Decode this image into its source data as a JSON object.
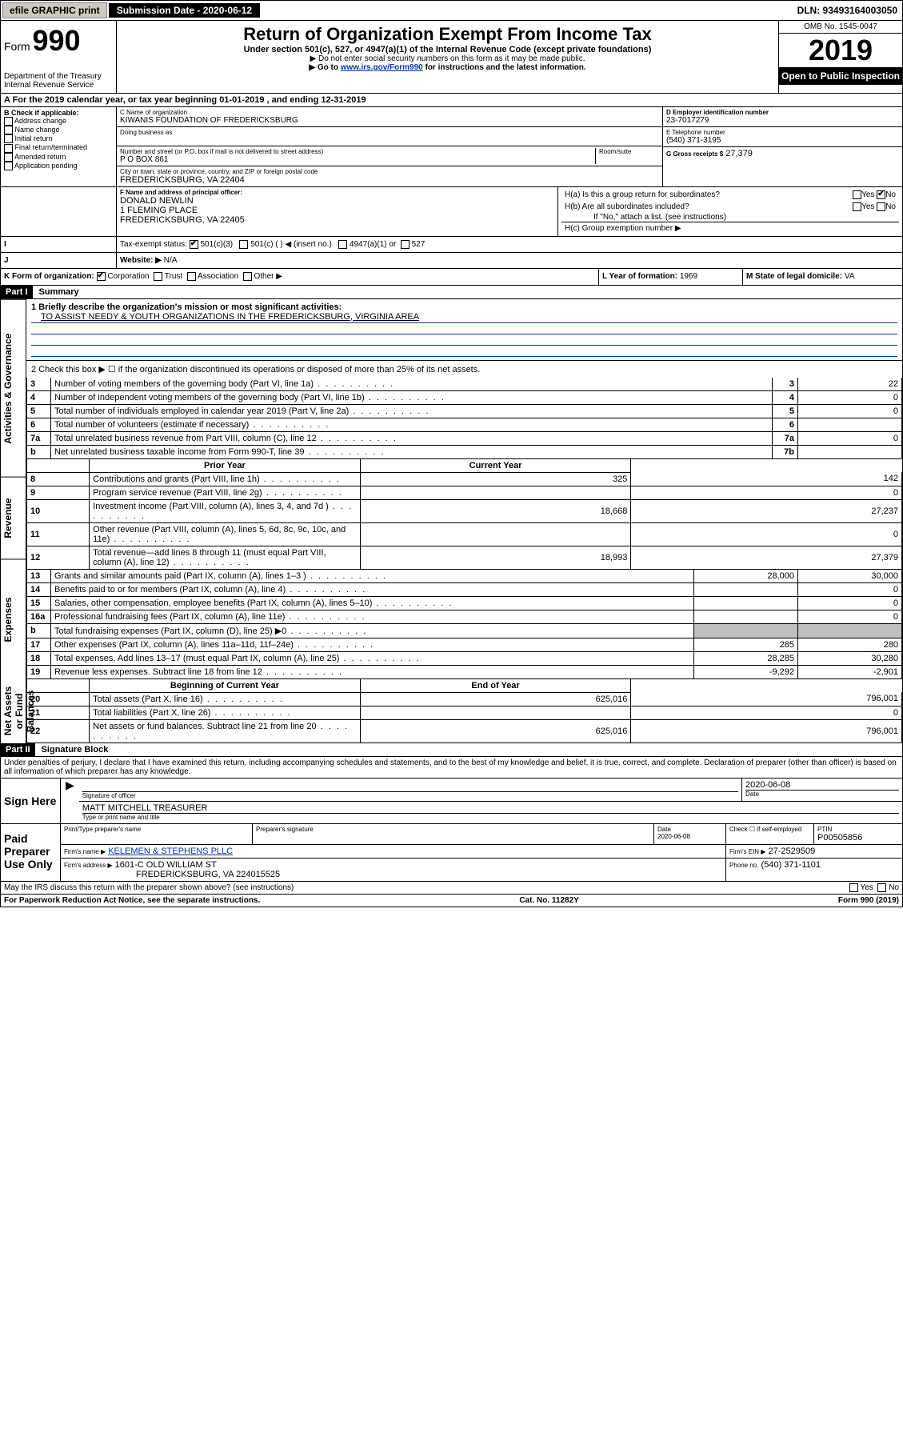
{
  "top_bar": {
    "efile": "efile GRAPHIC print",
    "submission_label": "Submission Date - 2020-06-12",
    "dln": "DLN: 93493164003050"
  },
  "header": {
    "form_label": "Form",
    "form_number": "990",
    "dept": "Department of the Treasury",
    "irs": "Internal Revenue Service",
    "title": "Return of Organization Exempt From Income Tax",
    "subtitle": "Under section 501(c), 527, or 4947(a)(1) of the Internal Revenue Code (except private foundations)",
    "note1": "▶ Do not enter social security numbers on this form as it may be made public.",
    "note2_prefix": "▶ Go to ",
    "note2_link": "www.irs.gov/Form990",
    "note2_suffix": " for instructions and the latest information.",
    "omb": "OMB No. 1545-0047",
    "year": "2019",
    "open": "Open to Public Inspection"
  },
  "period": {
    "line_a": "A For the 2019 calendar year, or tax year beginning 01-01-2019   , and ending 12-31-2019"
  },
  "section_b": {
    "label": "B Check if applicable:",
    "items": [
      "Address change",
      "Name change",
      "Initial return",
      "Final return/terminated",
      "Amended return",
      "Application pending"
    ]
  },
  "section_c": {
    "name_label": "C Name of organization",
    "name": "KIWANIS FOUNDATION OF FREDERICKSBURG",
    "dba_label": "Doing business as",
    "addr_label": "Number and street (or P.O. box if mail is not delivered to street address)",
    "room_label": "Room/suite",
    "addr": "P O BOX 861",
    "city_label": "City or town, state or province, country, and ZIP or foreign postal code",
    "city": "FREDERICKSBURG, VA  22404"
  },
  "section_d": {
    "label": "D Employer identification number",
    "value": "23-7017279"
  },
  "section_e": {
    "label": "E Telephone number",
    "value": "(540) 371-3195"
  },
  "section_g": {
    "label": "G Gross receipts $",
    "value": "27,379"
  },
  "section_f": {
    "label": "F  Name and address of principal officer:",
    "name": "DONALD NEWLIN",
    "addr1": "1 FLEMING PLACE",
    "addr2": "FREDERICKSBURG, VA  22405"
  },
  "section_h": {
    "ha": "H(a)  Is this a group return for subordinates?",
    "hb": "H(b)  Are all subordinates included?",
    "hb_note": "If \"No,\" attach a list. (see instructions)",
    "hc": "H(c)  Group exemption number ▶",
    "yes": "Yes",
    "no": "No"
  },
  "section_i": {
    "label": "Tax-exempt status:",
    "opt1": "501(c)(3)",
    "opt2": "501(c) (   ) ◀ (insert no.)",
    "opt3": "4947(a)(1) or",
    "opt4": "527"
  },
  "section_j": {
    "label": "Website: ▶",
    "value": "N/A"
  },
  "section_k": {
    "label": "K Form of organization:",
    "corp": "Corporation",
    "trust": "Trust",
    "assoc": "Association",
    "other": "Other ▶"
  },
  "section_l": {
    "label": "L Year of formation:",
    "value": "1969"
  },
  "section_m": {
    "label": "M State of legal domicile:",
    "value": "VA"
  },
  "part1": {
    "header": "Part I",
    "title": "Summary",
    "line1_label": "1  Briefly describe the organization's mission or most significant activities:",
    "line1_value": "TO ASSIST NEEDY & YOUTH ORGANIZATIONS IN THE FREDERICKSBURG, VIRGINIA AREA",
    "line2": "2   Check this box ▶ ☐  if the organization discontinued its operations or disposed of more than 25% of its net assets.",
    "sections": {
      "gov": "Activities & Governance",
      "rev": "Revenue",
      "exp": "Expenses",
      "net": "Net Assets or Fund Balances"
    },
    "rows_gov": [
      {
        "n": "3",
        "text": "Number of voting members of the governing body (Part VI, line 1a)",
        "col": "3",
        "val": "22"
      },
      {
        "n": "4",
        "text": "Number of independent voting members of the governing body (Part VI, line 1b)",
        "col": "4",
        "val": "0"
      },
      {
        "n": "5",
        "text": "Total number of individuals employed in calendar year 2019 (Part V, line 2a)",
        "col": "5",
        "val": "0"
      },
      {
        "n": "6",
        "text": "Total number of volunteers (estimate if necessary)",
        "col": "6",
        "val": ""
      },
      {
        "n": "7a",
        "text": "Total unrelated business revenue from Part VIII, column (C), line 12",
        "col": "7a",
        "val": "0"
      },
      {
        "n": "b",
        "text": "Net unrelated business taxable income from Form 990-T, line 39",
        "col": "7b",
        "val": ""
      }
    ],
    "col_headers": {
      "prior": "Prior Year",
      "current": "Current Year"
    },
    "rows_rev": [
      {
        "n": "8",
        "text": "Contributions and grants (Part VIII, line 1h)",
        "prior": "325",
        "current": "142"
      },
      {
        "n": "9",
        "text": "Program service revenue (Part VIII, line 2g)",
        "prior": "",
        "current": "0"
      },
      {
        "n": "10",
        "text": "Investment income (Part VIII, column (A), lines 3, 4, and 7d )",
        "prior": "18,668",
        "current": "27,237"
      },
      {
        "n": "11",
        "text": "Other revenue (Part VIII, column (A), lines 5, 6d, 8c, 9c, 10c, and 11e)",
        "prior": "",
        "current": "0"
      },
      {
        "n": "12",
        "text": "Total revenue—add lines 8 through 11 (must equal Part VIII, column (A), line 12)",
        "prior": "18,993",
        "current": "27,379"
      }
    ],
    "rows_exp": [
      {
        "n": "13",
        "text": "Grants and similar amounts paid (Part IX, column (A), lines 1–3 )",
        "prior": "28,000",
        "current": "30,000"
      },
      {
        "n": "14",
        "text": "Benefits paid to or for members (Part IX, column (A), line 4)",
        "prior": "",
        "current": "0"
      },
      {
        "n": "15",
        "text": "Salaries, other compensation, employee benefits (Part IX, column (A), lines 5–10)",
        "prior": "",
        "current": "0"
      },
      {
        "n": "16a",
        "text": "Professional fundraising fees (Part IX, column (A), line 11e)",
        "prior": "",
        "current": "0"
      },
      {
        "n": "b",
        "text": "Total fundraising expenses (Part IX, column (D), line 25) ▶0",
        "prior": "__shade__",
        "current": "__shade__"
      },
      {
        "n": "17",
        "text": "Other expenses (Part IX, column (A), lines 11a–11d, 11f–24e)",
        "prior": "285",
        "current": "280"
      },
      {
        "n": "18",
        "text": "Total expenses. Add lines 13–17 (must equal Part IX, column (A), line 25)",
        "prior": "28,285",
        "current": "30,280"
      },
      {
        "n": "19",
        "text": "Revenue less expenses. Subtract line 18 from line 12",
        "prior": "-9,292",
        "current": "-2,901"
      }
    ],
    "net_headers": {
      "begin": "Beginning of Current Year",
      "end": "End of Year"
    },
    "rows_net": [
      {
        "n": "20",
        "text": "Total assets (Part X, line 16)",
        "prior": "625,016",
        "current": "796,001"
      },
      {
        "n": "21",
        "text": "Total liabilities (Part X, line 26)",
        "prior": "",
        "current": "0"
      },
      {
        "n": "22",
        "text": "Net assets or fund balances. Subtract line 21 from line 20",
        "prior": "625,016",
        "current": "796,001"
      }
    ]
  },
  "part2": {
    "header": "Part II",
    "title": "Signature Block",
    "declaration": "Under penalties of perjury, I declare that I have examined this return, including accompanying schedules and statements, and to the best of my knowledge and belief, it is true, correct, and complete. Declaration of preparer (other than officer) is based on all information of which preparer has any knowledge."
  },
  "sign": {
    "label": "Sign Here",
    "sig_officer": "Signature of officer",
    "date": "2020-06-08",
    "date_label": "Date",
    "name": "MATT MITCHELL TREASURER",
    "name_label": "Type or print name and title"
  },
  "preparer": {
    "label": "Paid Preparer Use Only",
    "print_label": "Print/Type preparer's name",
    "sig_label": "Preparer's signature",
    "date_label": "Date",
    "date_value": "2020-06-08",
    "check_label": "Check ☐ if self-employed",
    "ptin_label": "PTIN",
    "ptin": "P00505856",
    "firm_name_label": "Firm's name   ▶",
    "firm_name": "KELEMEN & STEPHENS PLLC",
    "firm_ein_label": "Firm's EIN ▶",
    "firm_ein": "27-2529509",
    "firm_addr_label": "Firm's address ▶",
    "firm_addr1": "1601-C OLD WILLIAM ST",
    "firm_addr2": "FREDERICKSBURG, VA  224015525",
    "phone_label": "Phone no.",
    "phone": "(540) 371-1101"
  },
  "footer": {
    "discuss": "May the IRS discuss this return with the preparer shown above? (see instructions)",
    "yes": "Yes",
    "no": "No",
    "paperwork": "For Paperwork Reduction Act Notice, see the separate instructions.",
    "cat": "Cat. No. 11282Y",
    "formref": "Form 990 (2019)"
  }
}
